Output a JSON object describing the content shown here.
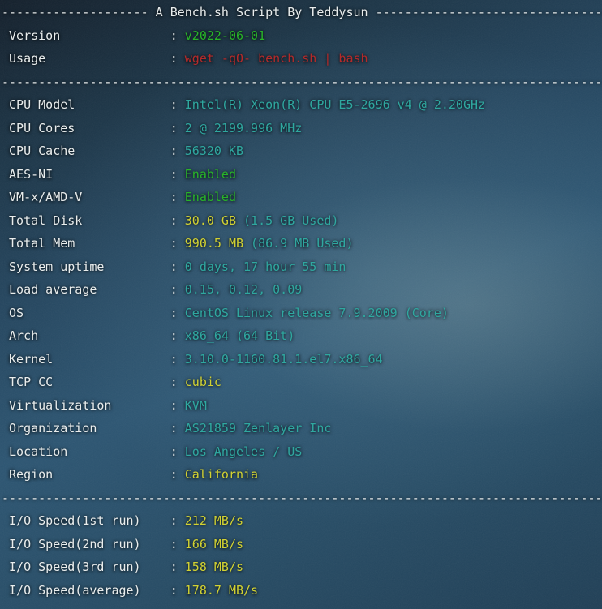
{
  "colors": {
    "label": "#e9eded",
    "dash": "#e9eded",
    "green": "#28b428",
    "red": "#b52a2a",
    "cyan": "#2fa8a0",
    "yellow": "#d2d232"
  },
  "terminal": {
    "label_pad": 21,
    "divider_text": "----------------------------------------------------------------------------------",
    "title_line": {
      "left": "--------------------",
      "text": "A Bench.sh Script By Teddysun",
      "right": "-------------------------------"
    },
    "lines": [
      {
        "type": "title"
      },
      {
        "type": "kv",
        "label": "Version",
        "value": [
          [
            "v2022-06-01",
            "green"
          ]
        ]
      },
      {
        "type": "kv",
        "label": "Usage",
        "value": [
          [
            "wget -qO- bench.sh | bash",
            "red"
          ]
        ]
      },
      {
        "type": "divider"
      },
      {
        "type": "kv",
        "label": "CPU Model",
        "value": [
          [
            "Intel(R) Xeon(R) CPU E5-2696 v4 @ 2.20GHz",
            "cyan"
          ]
        ]
      },
      {
        "type": "kv",
        "label": "CPU Cores",
        "value": [
          [
            "2 @ 2199.996 MHz",
            "cyan"
          ]
        ]
      },
      {
        "type": "kv",
        "label": "CPU Cache",
        "value": [
          [
            "56320 KB",
            "cyan"
          ]
        ]
      },
      {
        "type": "kv",
        "label": "AES-NI",
        "value": [
          [
            "Enabled",
            "green"
          ]
        ]
      },
      {
        "type": "kv",
        "label": "VM-x/AMD-V",
        "value": [
          [
            "Enabled",
            "green"
          ]
        ]
      },
      {
        "type": "kv",
        "label": "Total Disk",
        "value": [
          [
            "30.0 GB",
            "yellow"
          ],
          [
            " (1.5 GB Used)",
            "cyan"
          ]
        ]
      },
      {
        "type": "kv",
        "label": "Total Mem",
        "value": [
          [
            "990.5 MB",
            "yellow"
          ],
          [
            " (86.9 MB Used)",
            "cyan"
          ]
        ]
      },
      {
        "type": "kv",
        "label": "System uptime",
        "value": [
          [
            "0 days, 17 hour 55 min",
            "cyan"
          ]
        ]
      },
      {
        "type": "kv",
        "label": "Load average",
        "value": [
          [
            "0.15, 0.12, 0.09",
            "cyan"
          ]
        ]
      },
      {
        "type": "kv",
        "label": "OS",
        "value": [
          [
            "CentOS Linux release 7.9.2009 (Core)",
            "cyan"
          ]
        ]
      },
      {
        "type": "kv",
        "label": "Arch",
        "value": [
          [
            "x86_64 (64 Bit)",
            "cyan"
          ]
        ]
      },
      {
        "type": "kv",
        "label": "Kernel",
        "value": [
          [
            "3.10.0-1160.81.1.el7.x86_64",
            "cyan"
          ]
        ]
      },
      {
        "type": "kv",
        "label": "TCP CC",
        "value": [
          [
            "cubic",
            "yellow"
          ]
        ]
      },
      {
        "type": "kv",
        "label": "Virtualization",
        "value": [
          [
            "KVM",
            "cyan"
          ]
        ]
      },
      {
        "type": "kv",
        "label": "Organization",
        "value": [
          [
            "AS21859 Zenlayer Inc",
            "cyan"
          ]
        ]
      },
      {
        "type": "kv",
        "label": "Location",
        "value": [
          [
            "Los Angeles / US",
            "cyan"
          ]
        ]
      },
      {
        "type": "kv",
        "label": "Region",
        "value": [
          [
            "California",
            "yellow"
          ]
        ]
      },
      {
        "type": "divider"
      },
      {
        "type": "kv",
        "label": "I/O Speed(1st run)",
        "value": [
          [
            "212 MB/s",
            "yellow"
          ]
        ]
      },
      {
        "type": "kv",
        "label": "I/O Speed(2nd run)",
        "value": [
          [
            "166 MB/s",
            "yellow"
          ]
        ]
      },
      {
        "type": "kv",
        "label": "I/O Speed(3rd run)",
        "value": [
          [
            "158 MB/s",
            "yellow"
          ]
        ]
      },
      {
        "type": "kv",
        "label": "I/O Speed(average)",
        "value": [
          [
            "178.7 MB/s",
            "yellow"
          ]
        ]
      }
    ]
  }
}
